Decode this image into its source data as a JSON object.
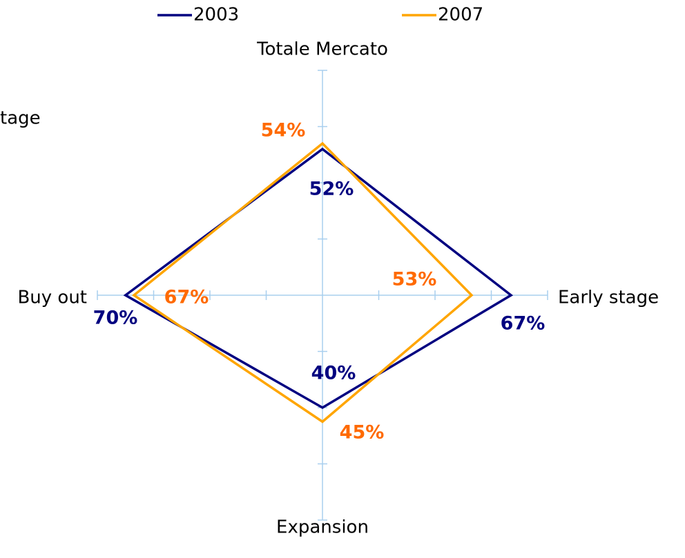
{
  "chart_data": {
    "type": "radar",
    "categories": [
      "Totale Mercato",
      "Early stage",
      "Expansion",
      "Buy out"
    ],
    "annotation": "tage",
    "rlim": [
      0,
      80
    ],
    "rticks": [
      20,
      40,
      60,
      80
    ],
    "axis_color": "#a8cfee",
    "series": [
      {
        "name": "2003",
        "color": "#000080",
        "label_color": "#000080",
        "values": [
          52,
          67,
          40,
          70
        ],
        "value_labels": [
          "52%",
          "67%",
          "40%",
          "70%"
        ]
      },
      {
        "name": "2007",
        "color": "#ffa500",
        "label_color": "#ff6a00",
        "values": [
          54,
          53,
          45,
          67
        ],
        "value_labels": [
          "54%",
          "53%",
          "45%",
          "67%"
        ]
      }
    ]
  }
}
